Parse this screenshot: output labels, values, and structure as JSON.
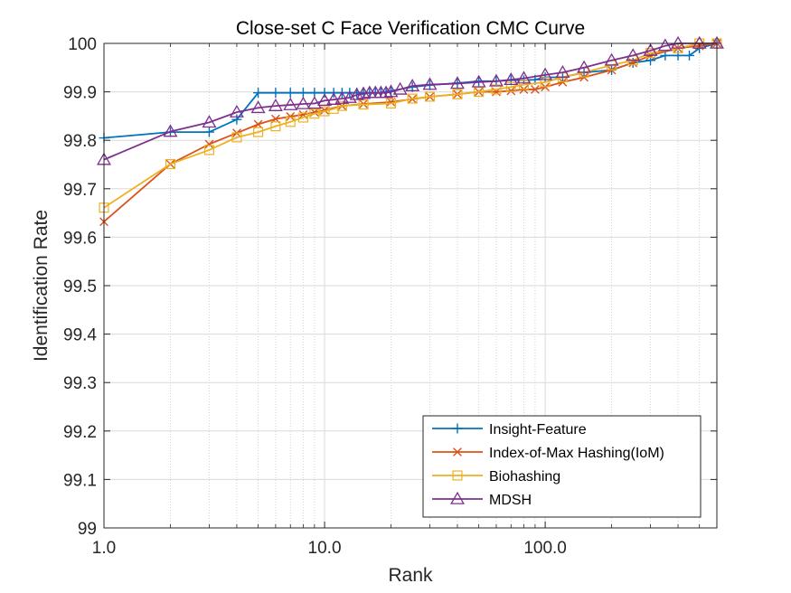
{
  "chart_data": {
    "type": "line",
    "title": "Close-set C Face Verification CMC Curve",
    "xlabel": "Rank",
    "ylabel": "Identification Rate",
    "x_scale": "log",
    "xlim": [
      1,
      600
    ],
    "ylim": [
      99,
      100
    ],
    "x_ticks": [
      1,
      10,
      100
    ],
    "x_tick_labels": [
      "1.0",
      "10.0",
      "100.0"
    ],
    "y_ticks": [
      99,
      99.1,
      99.2,
      99.3,
      99.4,
      99.5,
      99.6,
      99.7,
      99.8,
      99.9,
      100
    ],
    "y_tick_labels": [
      "99",
      "99.1",
      "99.2",
      "99.3",
      "99.4",
      "99.5",
      "99.6",
      "99.7",
      "99.8",
      "99.9",
      "100"
    ],
    "grid": true,
    "minor_grid": true,
    "legend_position": "bottom-right",
    "series": [
      {
        "name": "Insight-Feature",
        "color": "#0072BD",
        "marker": "plus",
        "x": [
          1,
          2,
          3,
          4,
          5,
          6,
          7,
          8,
          9,
          10,
          11,
          12,
          13,
          14,
          15,
          16,
          17,
          18,
          19,
          20,
          25,
          30,
          40,
          50,
          60,
          70,
          80,
          90,
          100,
          120,
          150,
          200,
          250,
          300,
          350,
          400,
          450,
          500,
          600
        ],
        "values": [
          99.805,
          99.817,
          99.817,
          99.843,
          99.898,
          99.898,
          99.898,
          99.898,
          99.898,
          99.898,
          99.898,
          99.898,
          99.898,
          99.898,
          99.898,
          99.898,
          99.898,
          99.898,
          99.9,
          99.902,
          99.91,
          99.914,
          99.918,
          99.922,
          99.922,
          99.924,
          99.924,
          99.925,
          99.93,
          99.93,
          99.94,
          99.945,
          99.96,
          99.965,
          99.975,
          99.975,
          99.975,
          99.99,
          100
        ]
      },
      {
        "name": "Index-of-Max Hashing(IoM)",
        "color": "#D95319",
        "marker": "x",
        "x": [
          1,
          2,
          3,
          4,
          5,
          6,
          7,
          8,
          9,
          10,
          12,
          15,
          20,
          25,
          30,
          40,
          50,
          60,
          70,
          80,
          90,
          100,
          120,
          150,
          200,
          250,
          300,
          400,
          500,
          600
        ],
        "values": [
          99.632,
          99.751,
          99.792,
          99.815,
          99.833,
          99.844,
          99.849,
          99.853,
          99.858,
          99.862,
          99.871,
          99.875,
          99.879,
          99.885,
          99.89,
          99.895,
          99.9,
          99.9,
          99.902,
          99.905,
          99.905,
          99.91,
          99.92,
          99.93,
          99.945,
          99.96,
          99.975,
          99.99,
          99.995,
          100
        ]
      },
      {
        "name": "Biohashing",
        "color": "#EDB120",
        "marker": "square",
        "x": [
          1,
          2,
          3,
          4,
          5,
          6,
          7,
          8,
          9,
          10,
          11,
          12,
          15,
          20,
          25,
          30,
          40,
          50,
          60,
          70,
          80,
          100,
          120,
          150,
          200,
          250,
          300,
          400,
          500,
          600
        ],
        "values": [
          99.661,
          99.751,
          99.78,
          99.806,
          99.817,
          99.829,
          99.838,
          99.847,
          99.855,
          99.86,
          99.865,
          99.871,
          99.874,
          99.876,
          99.886,
          99.89,
          99.895,
          99.9,
          99.905,
          99.91,
          99.915,
          99.92,
          99.93,
          99.94,
          99.955,
          99.965,
          99.98,
          99.99,
          100,
          100
        ]
      },
      {
        "name": "MDSH",
        "color": "#7E2F8E",
        "marker": "triangle",
        "x": [
          1,
          2,
          3,
          4,
          5,
          6,
          7,
          8,
          9,
          10,
          11,
          12,
          13,
          14,
          15,
          16,
          17,
          18,
          19,
          20,
          22,
          25,
          30,
          40,
          50,
          60,
          70,
          80,
          100,
          120,
          150,
          200,
          250,
          300,
          350,
          400,
          500,
          600
        ],
        "values": [
          99.76,
          99.818,
          99.837,
          99.858,
          99.867,
          99.871,
          99.873,
          99.875,
          99.876,
          99.882,
          99.884,
          99.886,
          99.888,
          99.894,
          99.896,
          99.898,
          99.898,
          99.898,
          99.898,
          99.9,
          99.905,
          99.912,
          99.915,
          99.917,
          99.92,
          99.922,
          99.925,
          99.928,
          99.935,
          99.94,
          99.95,
          99.965,
          99.975,
          99.985,
          99.995,
          100,
          100,
          100
        ]
      }
    ]
  }
}
